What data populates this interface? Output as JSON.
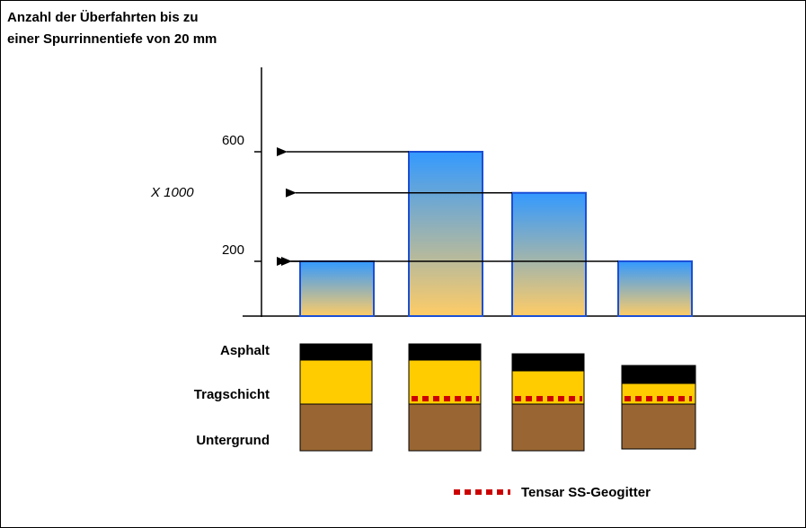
{
  "chart_data": {
    "type": "bar",
    "title": [
      "Anzahl der Überfahrten bis zu",
      "einer Spurrinnentiefe von 20 mm"
    ],
    "y_unit_label": "X 1000",
    "values": [
      200,
      600,
      450,
      200
    ],
    "ylim": [
      0,
      900
    ],
    "yticks": [
      200,
      600
    ],
    "color_top": "#3399ff",
    "color_bottom": "#ffcc66",
    "edge_color": "#1a4fd6",
    "layer_labels": [
      "Asphalt",
      "Tragschicht",
      "Untergrund"
    ],
    "legend": "Tensar SS-Geogitter"
  }
}
